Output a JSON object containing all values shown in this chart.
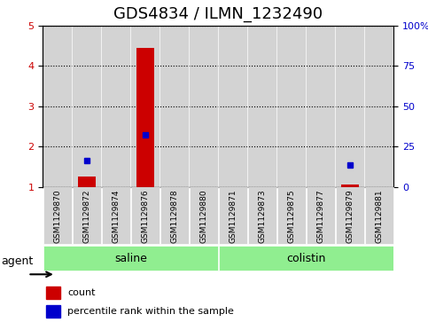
{
  "title": "GDS4834 / ILMN_1232490",
  "samples": [
    "GSM1129870",
    "GSM1129872",
    "GSM1129874",
    "GSM1129876",
    "GSM1129878",
    "GSM1129880",
    "GSM1129871",
    "GSM1129873",
    "GSM1129875",
    "GSM1129877",
    "GSM1129879",
    "GSM1129881"
  ],
  "count_values": [
    1.0,
    1.25,
    1.0,
    4.45,
    1.0,
    1.0,
    1.0,
    1.0,
    1.0,
    1.0,
    1.05,
    1.0
  ],
  "percentile_values": [
    null,
    1.65,
    null,
    2.3,
    null,
    null,
    null,
    null,
    null,
    null,
    1.55,
    null
  ],
  "groups": [
    {
      "label": "saline",
      "start": 0,
      "end": 5,
      "color": "#90ee90"
    },
    {
      "label": "colistin",
      "start": 6,
      "end": 11,
      "color": "#90ee90"
    }
  ],
  "ylim_left": [
    1,
    5
  ],
  "ylim_right": [
    0,
    100
  ],
  "yticks_left": [
    1,
    2,
    3,
    4,
    5
  ],
  "yticks_right": [
    0,
    25,
    50,
    75,
    100
  ],
  "yticklabels_right": [
    "0",
    "25",
    "50",
    "75",
    "100%"
  ],
  "count_color": "#cc0000",
  "percentile_color": "#0000cc",
  "bar_width": 0.6,
  "legend_count_label": "count",
  "legend_percentile_label": "percentile rank within the sample",
  "agent_label": "agent",
  "background_color": "#ffffff",
  "grid_color": "#000000",
  "sample_box_color": "#d3d3d3",
  "title_fontsize": 13,
  "tick_fontsize": 8,
  "label_fontsize": 9
}
